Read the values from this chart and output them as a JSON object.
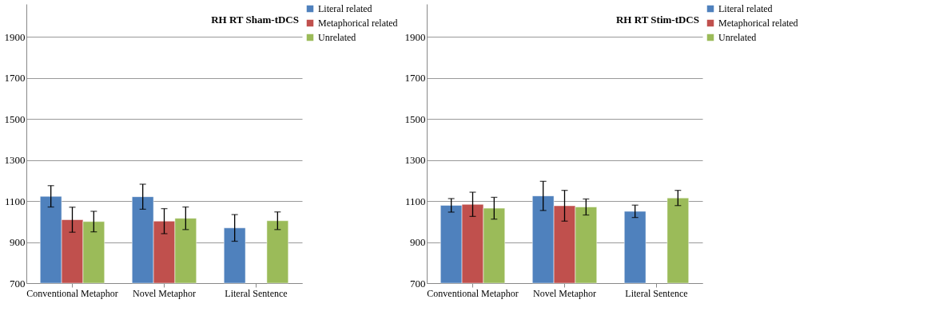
{
  "chart_data": [
    {
      "type": "bar",
      "title": "RH RT Sham-tDCS",
      "categories": [
        "Conventional Metaphor",
        "Novel Metaphor",
        "Literal Sentence"
      ],
      "ylim": [
        700,
        2060
      ],
      "yticks": [
        700,
        900,
        1100,
        1300,
        1500,
        1700,
        1900
      ],
      "grid": "y",
      "legend": "right",
      "series": [
        {
          "name": "Literal related",
          "color": "#4f81bd",
          "values": [
            1123,
            1121,
            969
          ],
          "errors": [
            52,
            61,
            65
          ]
        },
        {
          "name": "Metaphorical related",
          "color": "#c0504d",
          "values": [
            1009,
            1002,
            null
          ],
          "errors": [
            61,
            61,
            null
          ]
        },
        {
          "name": "Unrelated",
          "color": "#9bbb59",
          "values": [
            1000,
            1016,
            1004
          ],
          "errors": [
            50,
            55,
            43
          ]
        }
      ]
    },
    {
      "type": "bar",
      "title": "RH RT Stim-tDCS",
      "categories": [
        "Conventional Metaphor",
        "Novel Metaphor",
        "Literal Sentence"
      ],
      "ylim": [
        700,
        2060
      ],
      "yticks": [
        700,
        900,
        1100,
        1300,
        1500,
        1700,
        1900
      ],
      "grid": "y",
      "legend": "right",
      "series": [
        {
          "name": "Literal related",
          "color": "#4f81bd",
          "values": [
            1079,
            1125,
            1050
          ],
          "errors": [
            33,
            71,
            30
          ]
        },
        {
          "name": "Metaphorical related",
          "color": "#c0504d",
          "values": [
            1084,
            1077,
            null
          ],
          "errors": [
            59,
            75,
            null
          ]
        },
        {
          "name": "Unrelated",
          "color": "#9bbb59",
          "values": [
            1065,
            1071,
            1115
          ],
          "errors": [
            53,
            39,
            37
          ]
        }
      ]
    }
  ]
}
